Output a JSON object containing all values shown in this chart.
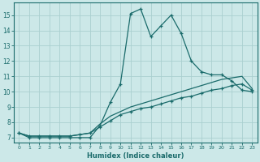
{
  "xlabel": "Humidex (Indice chaleur)",
  "ylabel": "",
  "xlim": [
    -0.5,
    23.5
  ],
  "ylim": [
    6.7,
    15.8
  ],
  "yticks": [
    7,
    8,
    9,
    10,
    11,
    12,
    13,
    14,
    15
  ],
  "xticks": [
    0,
    1,
    2,
    3,
    4,
    5,
    6,
    7,
    8,
    9,
    10,
    11,
    12,
    13,
    14,
    15,
    16,
    17,
    18,
    19,
    20,
    21,
    22,
    23
  ],
  "bg_color": "#cce8e8",
  "grid_color": "#aad0d0",
  "line_color": "#1a6b6b",
  "line1_x": [
    0,
    1,
    2,
    3,
    4,
    5,
    6,
    7,
    8,
    9,
    10,
    11,
    12,
    13,
    14,
    15,
    16,
    17,
    18,
    19,
    20,
    21,
    22,
    23
  ],
  "line1_y": [
    7.3,
    7.0,
    7.0,
    7.0,
    7.0,
    7.0,
    7.0,
    7.0,
    7.8,
    9.3,
    10.5,
    15.1,
    15.4,
    13.6,
    14.3,
    15.0,
    13.8,
    12.0,
    11.3,
    11.1,
    11.1,
    10.7,
    10.1,
    10.0
  ],
  "line2_x": [
    0,
    1,
    2,
    3,
    4,
    5,
    6,
    7,
    8,
    9,
    10,
    11,
    12,
    13,
    14,
    15,
    16,
    17,
    18,
    19,
    20,
    21,
    22,
    23
  ],
  "line2_y": [
    7.3,
    7.1,
    7.1,
    7.1,
    7.1,
    7.1,
    7.2,
    7.3,
    7.7,
    8.1,
    8.5,
    8.7,
    8.9,
    9.0,
    9.2,
    9.4,
    9.6,
    9.7,
    9.9,
    10.1,
    10.2,
    10.4,
    10.5,
    10.1
  ],
  "line3_x": [
    0,
    1,
    2,
    3,
    4,
    5,
    6,
    7,
    8,
    9,
    10,
    11,
    12,
    13,
    14,
    15,
    16,
    17,
    18,
    19,
    20,
    21,
    22,
    23
  ],
  "line3_y": [
    7.3,
    7.1,
    7.1,
    7.1,
    7.1,
    7.1,
    7.2,
    7.3,
    7.9,
    8.4,
    8.7,
    9.0,
    9.2,
    9.4,
    9.6,
    9.8,
    10.0,
    10.2,
    10.4,
    10.6,
    10.8,
    10.9,
    11.0,
    10.2
  ]
}
